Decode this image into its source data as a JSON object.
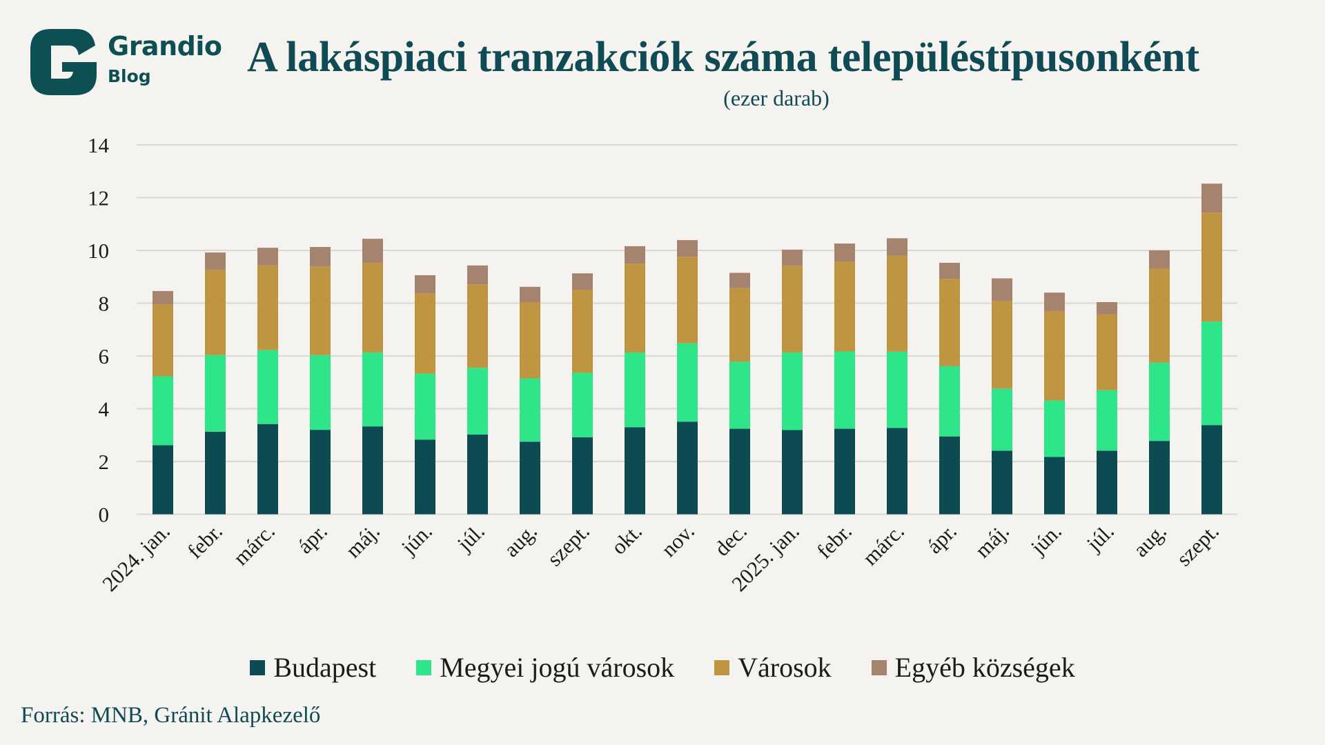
{
  "brand": {
    "name": "Grandio",
    "sub": "Blog",
    "color": "#0d4f53"
  },
  "header": {
    "title": "A lakáspiaci tranzakciók száma településtípusonként",
    "subtitle": "(ezer darab)"
  },
  "source": "Forrás: MNB, Gránit Alapkezelő",
  "chart_data": {
    "type": "bar",
    "stacked": true,
    "title": "A lakáspiaci tranzakciók száma településtípusonként",
    "subtitle": "(ezer darab)",
    "xlabel": "",
    "ylabel": "",
    "ylim": [
      0,
      14
    ],
    "yticks": [
      "0",
      "2",
      "4",
      "6",
      "8",
      "10",
      "12",
      "14"
    ],
    "grid": true,
    "legend_position": "bottom",
    "categories": [
      "2024. jan.",
      "febr.",
      "márc.",
      "ápr.",
      "máj.",
      "jún.",
      "júl.",
      "aug.",
      "szept.",
      "okt.",
      "nov.",
      "dec.",
      "2025. jan.",
      "febr.",
      "márc.",
      "ápr.",
      "máj.",
      "jún.",
      "júl.",
      "aug.",
      "szept."
    ],
    "series": [
      {
        "name": "Budapest",
        "color": "#0d4b53",
        "values": [
          2.62,
          3.13,
          3.42,
          3.2,
          3.33,
          2.83,
          3.02,
          2.75,
          2.92,
          3.3,
          3.51,
          3.24,
          3.19,
          3.24,
          3.27,
          2.95,
          2.41,
          2.17,
          2.41,
          2.78,
          3.38
        ]
      },
      {
        "name": "Megyei jogú városok",
        "color": "#2ee589",
        "values": [
          2.61,
          2.9,
          2.8,
          2.83,
          2.8,
          2.5,
          2.53,
          2.4,
          2.44,
          2.83,
          2.97,
          2.54,
          2.94,
          2.93,
          2.89,
          2.66,
          2.35,
          2.14,
          2.29,
          2.97,
          3.92
        ]
      },
      {
        "name": "Városok",
        "color": "#be9641",
        "values": [
          2.73,
          3.24,
          3.21,
          3.36,
          3.4,
          3.04,
          3.16,
          2.89,
          3.15,
          3.37,
          3.28,
          2.79,
          3.29,
          3.4,
          3.64,
          3.31,
          3.33,
          3.39,
          2.88,
          3.57,
          4.13
        ]
      },
      {
        "name": "Egyéb községek",
        "color": "#a6836e",
        "values": [
          0.5,
          0.65,
          0.67,
          0.74,
          0.91,
          0.69,
          0.72,
          0.58,
          0.62,
          0.66,
          0.63,
          0.58,
          0.61,
          0.69,
          0.66,
          0.61,
          0.85,
          0.7,
          0.46,
          0.68,
          1.1
        ]
      }
    ]
  }
}
